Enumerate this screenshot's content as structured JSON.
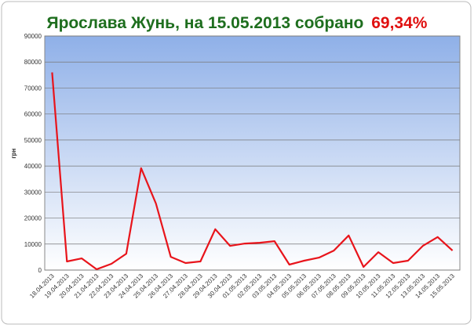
{
  "chart_data": {
    "type": "line",
    "title": "Ярослава Жунь, на 15.05.2013 собрано",
    "title_highlight": "69,34%",
    "y_label": "грн",
    "categories": [
      "18.04.2013",
      "19.04.2013",
      "20.04.2013",
      "21.04.2013",
      "22.04.2013",
      "23.04.2013",
      "24.04.2013",
      "25.04.2013",
      "26.04.2013",
      "27.04.2013",
      "28.04.2013",
      "29.04.2013",
      "30.04.2013",
      "01.05.2013",
      "02.05.2013",
      "03.05.2013",
      "04.05.2013",
      "05.05.2013",
      "06.05.2013",
      "07.05.2013",
      "08.05.2013",
      "09.05.2013",
      "10.05.2013",
      "11.05.2013",
      "12.05.2013",
      "13.05.2013",
      "14.05.2013",
      "15.05.2013"
    ],
    "values": [
      76000,
      3300,
      4500,
      300,
      2400,
      6300,
      39200,
      25600,
      5100,
      2700,
      3300,
      15700,
      9300,
      10200,
      10500,
      11100,
      2100,
      3600,
      4800,
      7500,
      13300,
      1200,
      6900,
      2700,
      3600,
      9300,
      12700,
      7500
    ],
    "color": "#e8141b",
    "ylim": [
      0,
      90000
    ],
    "yticks": [
      0,
      10000,
      20000,
      30000,
      40000,
      50000,
      60000,
      70000,
      80000,
      90000
    ],
    "grid": true
  }
}
